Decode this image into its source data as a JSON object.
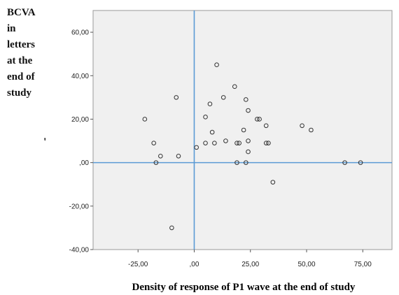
{
  "chart_data": {
    "type": "scatter",
    "xlabel": "Density of response of P1 wave  at the end of study",
    "ylabel_lines": [
      "BCVA",
      "in",
      "letters",
      "at the",
      "end  of",
      "study"
    ],
    "xlim": [
      -45,
      88
    ],
    "ylim": [
      -40,
      70
    ],
    "x_ticks": [
      {
        "value": -25,
        "label": "-25,00"
      },
      {
        "value": 0,
        "label": ",00"
      },
      {
        "value": 25,
        "label": "25,00"
      },
      {
        "value": 50,
        "label": "50,00"
      },
      {
        "value": 75,
        "label": "75,00"
      }
    ],
    "y_ticks": [
      {
        "value": 60,
        "label": "60,00"
      },
      {
        "value": 40,
        "label": "40,00"
      },
      {
        "value": 20,
        "label": "20,00"
      },
      {
        "value": 0,
        "label": ",00"
      },
      {
        "value": -20,
        "label": "-20,00"
      },
      {
        "value": -40,
        "label": "-40,00"
      }
    ],
    "reference_lines": {
      "x": 0,
      "y": 0,
      "color": "#5b9bd5"
    },
    "grid": false,
    "plot_background": "#f0f0f0",
    "points": [
      {
        "x": -22,
        "y": 20
      },
      {
        "x": -18,
        "y": 9
      },
      {
        "x": -17,
        "y": 0
      },
      {
        "x": -15,
        "y": 3
      },
      {
        "x": -10,
        "y": -30
      },
      {
        "x": -8,
        "y": 30
      },
      {
        "x": -7,
        "y": 3
      },
      {
        "x": 1,
        "y": 7
      },
      {
        "x": 5,
        "y": 21
      },
      {
        "x": 5,
        "y": 9
      },
      {
        "x": 7,
        "y": 27
      },
      {
        "x": 8,
        "y": 14
      },
      {
        "x": 9,
        "y": 9
      },
      {
        "x": 10,
        "y": 45
      },
      {
        "x": 13,
        "y": 30
      },
      {
        "x": 14,
        "y": 10
      },
      {
        "x": 18,
        "y": 35
      },
      {
        "x": 19,
        "y": 9
      },
      {
        "x": 19,
        "y": 0
      },
      {
        "x": 20,
        "y": 9
      },
      {
        "x": 22,
        "y": 15
      },
      {
        "x": 23,
        "y": 0
      },
      {
        "x": 23,
        "y": 29
      },
      {
        "x": 24,
        "y": 24
      },
      {
        "x": 24,
        "y": 5
      },
      {
        "x": 24,
        "y": 10
      },
      {
        "x": 28,
        "y": 20
      },
      {
        "x": 29,
        "y": 20
      },
      {
        "x": 32,
        "y": 17
      },
      {
        "x": 32,
        "y": 9
      },
      {
        "x": 33,
        "y": 9
      },
      {
        "x": 35,
        "y": -9
      },
      {
        "x": 48,
        "y": 17
      },
      {
        "x": 52,
        "y": 15
      },
      {
        "x": 67,
        "y": 0
      },
      {
        "x": 74,
        "y": 0
      }
    ]
  }
}
